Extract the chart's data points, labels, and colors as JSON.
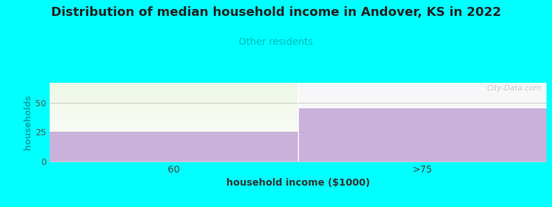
{
  "title": "Distribution of median household income in Andover, KS in 2022",
  "subtitle": "Other residents",
  "xlabel": "household income ($1000)",
  "ylabel": "households",
  "categories": [
    "60",
    ">75"
  ],
  "values": [
    25,
    45
  ],
  "bar_color": "#c4a8d8",
  "background_color": "#00ffff",
  "ylim": [
    0,
    67
  ],
  "yticks": [
    0,
    25,
    50
  ],
  "title_fontsize": 13,
  "subtitle_fontsize": 10,
  "subtitle_color": "#00bbbb",
  "ylabel_color": "#00aaaa",
  "watermark": "City-Data.com"
}
